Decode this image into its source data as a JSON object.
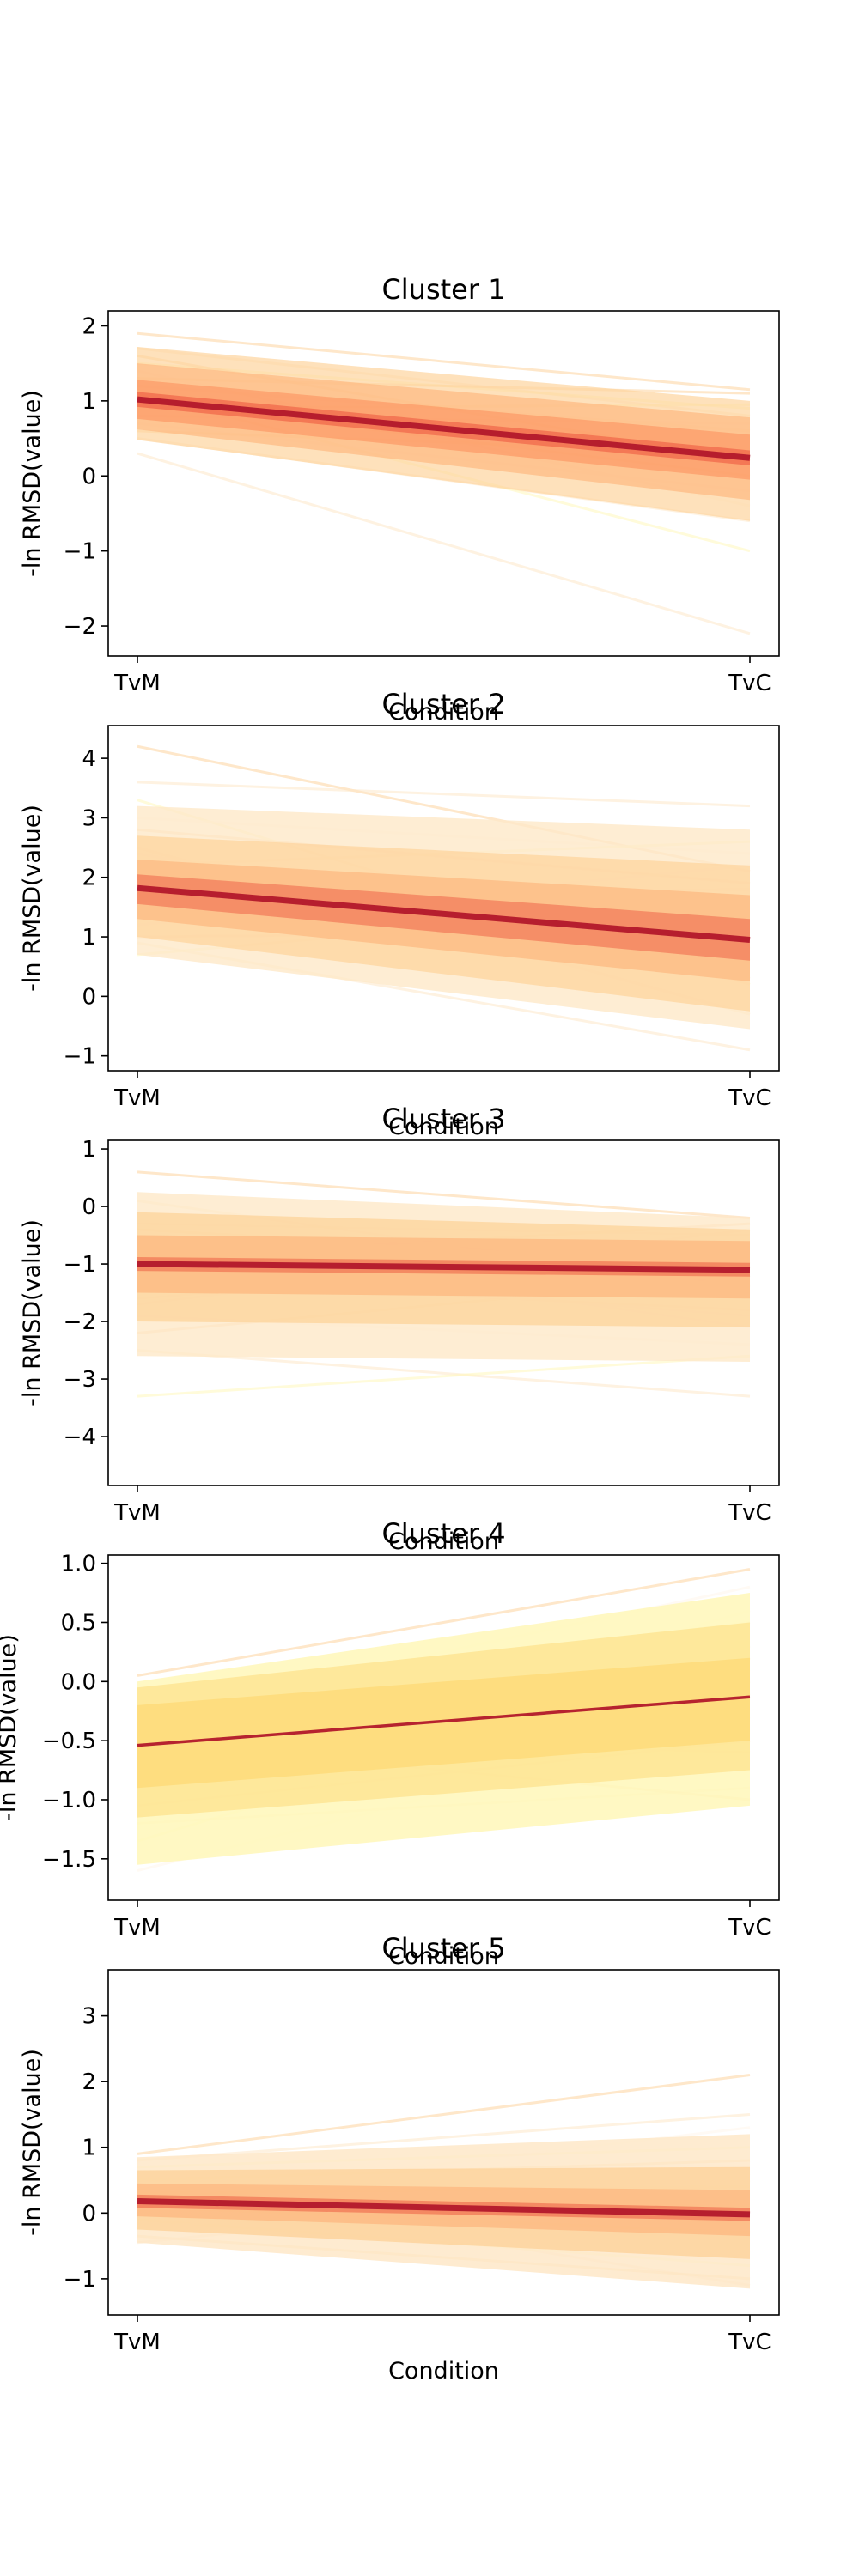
{
  "figure": {
    "background": "#ffffff",
    "palette": {
      "central_band": "#b2182b",
      "inner_band": "#ef6548",
      "middle_band": "#fc8d59",
      "outer_band": "#fdbb84",
      "sample_lines": [
        "#fdd49e",
        "#fee8c8",
        "#fff7bc",
        "#fff5eb"
      ]
    }
  },
  "chart_data": [
    {
      "type": "line",
      "title": "Cluster 1",
      "xlabel": "Condition",
      "ylabel": "-ln RMSD(value)",
      "categories": [
        "TvM",
        "TvC"
      ],
      "ylim": [
        -2.4,
        2.2
      ],
      "yticks": [
        -2,
        -1,
        0,
        1,
        2
      ],
      "ytick_labels": [
        "−2",
        "−1",
        "0",
        "1",
        "2"
      ],
      "grid": false,
      "mean": [
        1.02,
        0.24
      ],
      "bands": [
        {
          "lower": [
            0.48,
            -0.6
          ],
          "upper": [
            1.72,
            1.0
          ],
          "color": "#fdd49e",
          "opacity": 0.7
        },
        {
          "lower": [
            0.62,
            -0.32
          ],
          "upper": [
            1.5,
            0.78
          ],
          "color": "#fdbb84",
          "opacity": 0.75
        },
        {
          "lower": [
            0.76,
            -0.05
          ],
          "upper": [
            1.28,
            0.55
          ],
          "color": "#fc8d59",
          "opacity": 0.55
        },
        {
          "lower": [
            0.92,
            0.14
          ],
          "upper": [
            1.12,
            0.34
          ],
          "color": "#ef6548",
          "opacity": 0.7
        }
      ],
      "mean_width": 7,
      "samples": [
        [
          1.9,
          1.15
        ],
        [
          1.7,
          0.8
        ],
        [
          1.5,
          0.9
        ],
        [
          1.4,
          -0.4
        ],
        [
          1.3,
          1.1
        ],
        [
          1.2,
          0.6
        ],
        [
          0.9,
          0.95
        ],
        [
          0.7,
          -0.2
        ],
        [
          0.6,
          0.3
        ],
        [
          0.5,
          -0.6
        ],
        [
          1.1,
          -1.0
        ],
        [
          0.8,
          0.7
        ],
        [
          1.6,
          0.2
        ],
        [
          0.3,
          -2.1
        ],
        [
          1.0,
          0.0
        ]
      ]
    },
    {
      "type": "line",
      "title": "Cluster 2",
      "xlabel": "Condition",
      "ylabel": "-ln RMSD(value)",
      "categories": [
        "TvM",
        "TvC"
      ],
      "ylim": [
        -1.25,
        4.55
      ],
      "yticks": [
        -1,
        0,
        1,
        2,
        3,
        4
      ],
      "ytick_labels": [
        "−1",
        "0",
        "1",
        "2",
        "3",
        "4"
      ],
      "grid": false,
      "mean": [
        1.82,
        0.95
      ],
      "bands": [
        {
          "lower": [
            0.7,
            -0.55
          ],
          "upper": [
            3.2,
            2.8
          ],
          "color": "#fee8c8",
          "opacity": 0.8
        },
        {
          "lower": [
            1.0,
            -0.25
          ],
          "upper": [
            2.7,
            2.2
          ],
          "color": "#fdd49e",
          "opacity": 0.75
        },
        {
          "lower": [
            1.3,
            0.25
          ],
          "upper": [
            2.3,
            1.7
          ],
          "color": "#fdbb84",
          "opacity": 0.8
        },
        {
          "lower": [
            1.55,
            0.6
          ],
          "upper": [
            2.05,
            1.3
          ],
          "color": "#ef6548",
          "opacity": 0.55
        }
      ],
      "mean_width": 7,
      "samples": [
        [
          4.2,
          2.1
        ],
        [
          3.6,
          3.2
        ],
        [
          3.3,
          0.2
        ],
        [
          3.0,
          2.4
        ],
        [
          2.8,
          1.9
        ],
        [
          2.5,
          -0.3
        ],
        [
          2.2,
          2.6
        ],
        [
          2.0,
          1.4
        ],
        [
          1.8,
          0.3
        ],
        [
          1.6,
          1.8
        ],
        [
          1.4,
          0.6
        ],
        [
          1.2,
          2.2
        ],
        [
          1.0,
          1.1
        ],
        [
          0.9,
          -0.9
        ],
        [
          0.7,
          1.6
        ],
        [
          2.4,
          0.6
        ],
        [
          2.1,
          0.8
        ]
      ]
    },
    {
      "type": "line",
      "title": "Cluster 3",
      "xlabel": "Condition",
      "ylabel": "-ln RMSD(value)",
      "categories": [
        "TvM",
        "TvC"
      ],
      "ylim": [
        -4.85,
        1.15
      ],
      "yticks": [
        -4,
        -3,
        -2,
        -1,
        0,
        1
      ],
      "ytick_labels": [
        "−4",
        "−3",
        "−2",
        "−1",
        "0",
        "1"
      ],
      "grid": false,
      "mean": [
        -1.0,
        -1.1
      ],
      "bands": [
        {
          "lower": [
            -2.6,
            -2.7
          ],
          "upper": [
            0.25,
            -0.2
          ],
          "color": "#fee8c8",
          "opacity": 0.8
        },
        {
          "lower": [
            -2.0,
            -2.1
          ],
          "upper": [
            -0.1,
            -0.4
          ],
          "color": "#fdd49e",
          "opacity": 0.8
        },
        {
          "lower": [
            -1.5,
            -1.6
          ],
          "upper": [
            -0.5,
            -0.6
          ],
          "color": "#fdbb84",
          "opacity": 0.85
        },
        {
          "lower": [
            -1.12,
            -1.22
          ],
          "upper": [
            -0.88,
            -0.98
          ],
          "color": "#ef6548",
          "opacity": 0.6
        }
      ],
      "mean_width": 7,
      "samples": [
        [
          0.6,
          -0.2
        ],
        [
          0.1,
          -1.4
        ],
        [
          -0.3,
          -0.5
        ],
        [
          -0.6,
          -2.1
        ],
        [
          -0.9,
          -0.3
        ],
        [
          -1.3,
          -1.8
        ],
        [
          -1.6,
          -0.8
        ],
        [
          -1.9,
          -2.4
        ],
        [
          -2.2,
          -1.2
        ],
        [
          -2.5,
          -3.3
        ],
        [
          -3.3,
          -2.6
        ],
        [
          -1.1,
          -1.9
        ],
        [
          -0.4,
          -1.0
        ],
        [
          -1.7,
          -0.4
        ]
      ]
    },
    {
      "type": "line",
      "title": "Cluster 4",
      "xlabel": "Condition",
      "ylabel": "-ln RMSD(value)",
      "categories": [
        "TvM",
        "TvC"
      ],
      "ylim": [
        -1.85,
        1.07
      ],
      "yticks": [
        -1.5,
        -1.0,
        -0.5,
        0.0,
        0.5,
        1.0
      ],
      "ytick_labels": [
        "−1.5",
        "−1.0",
        "−0.5",
        "0.0",
        "0.5",
        "1.0"
      ],
      "grid": false,
      "mean": [
        -0.54,
        -0.13
      ],
      "bands": [
        {
          "lower": [
            -1.55,
            -1.05
          ],
          "upper": [
            0.0,
            0.75
          ],
          "color": "#fff7bc",
          "opacity": 0.9
        },
        {
          "lower": [
            -1.15,
            -0.75
          ],
          "upper": [
            -0.05,
            0.5
          ],
          "color": "#fee391",
          "opacity": 0.8
        },
        {
          "lower": [
            -0.9,
            -0.5
          ],
          "upper": [
            -0.2,
            0.2
          ],
          "color": "#fed976",
          "opacity": 0.75
        }
      ],
      "mean_width": 3.5,
      "samples": [
        [
          0.05,
          0.95
        ],
        [
          -0.1,
          0.5
        ],
        [
          -0.2,
          0.1
        ],
        [
          -0.3,
          0.8
        ],
        [
          -0.45,
          -0.6
        ],
        [
          -0.6,
          0.3
        ],
        [
          -0.75,
          -0.1
        ],
        [
          -0.9,
          0.6
        ],
        [
          -1.05,
          -0.5
        ],
        [
          -1.2,
          -0.9
        ],
        [
          -1.35,
          0.2
        ],
        [
          -1.6,
          -0.3
        ],
        [
          -0.5,
          -1.0
        ],
        [
          -0.8,
          0.0
        ]
      ]
    },
    {
      "type": "line",
      "title": "Cluster 5",
      "xlabel": "Condition",
      "ylabel": "-ln RMSD(value)",
      "categories": [
        "TvM",
        "TvC"
      ],
      "ylim": [
        -1.55,
        3.7
      ],
      "yticks": [
        -1,
        0,
        1,
        2,
        3
      ],
      "ytick_labels": [
        "−1",
        "0",
        "1",
        "2",
        "3"
      ],
      "grid": false,
      "mean": [
        0.18,
        -0.02
      ],
      "bands": [
        {
          "lower": [
            -0.45,
            -1.15
          ],
          "upper": [
            0.85,
            1.2
          ],
          "color": "#fee8c8",
          "opacity": 0.85
        },
        {
          "lower": [
            -0.25,
            -0.7
          ],
          "upper": [
            0.65,
            0.7
          ],
          "color": "#fdd49e",
          "opacity": 0.85
        },
        {
          "lower": [
            -0.05,
            -0.35
          ],
          "upper": [
            0.45,
            0.35
          ],
          "color": "#fdbb84",
          "opacity": 0.85
        },
        {
          "lower": [
            0.08,
            -0.12
          ],
          "upper": [
            0.28,
            0.08
          ],
          "color": "#ef6548",
          "opacity": 0.6
        }
      ],
      "mean_width": 7,
      "samples": [
        [
          0.9,
          2.1
        ],
        [
          0.8,
          1.5
        ],
        [
          0.7,
          1.0
        ],
        [
          0.6,
          -0.6
        ],
        [
          0.5,
          0.8
        ],
        [
          0.4,
          -1.1
        ],
        [
          0.3,
          0.4
        ],
        [
          0.2,
          1.3
        ],
        [
          0.1,
          -0.3
        ],
        [
          0.0,
          0.6
        ],
        [
          -0.1,
          -0.8
        ],
        [
          -0.2,
          0.2
        ],
        [
          -0.35,
          -1.0
        ],
        [
          -0.45,
          0.5
        ]
      ]
    }
  ]
}
